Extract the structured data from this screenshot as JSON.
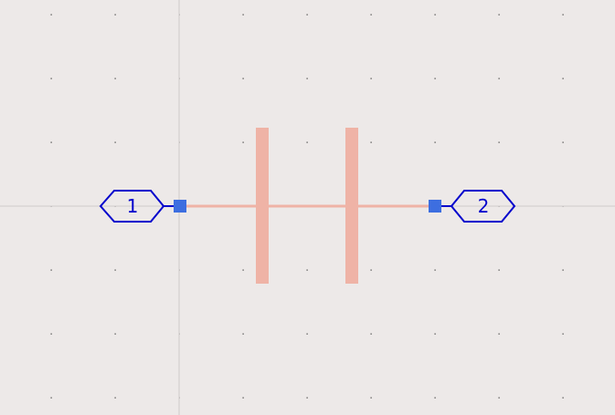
{
  "schematic": {
    "background_color": "#ede9e8",
    "grid_dot_color": "#3a3a3a",
    "axis_line_color": "#cfcaca",
    "component": {
      "type": "capacitor",
      "color": "#efb3a6"
    },
    "pins": {
      "color": "#3d6ee0"
    },
    "ports": [
      {
        "label": "1",
        "color": "#0000cc"
      },
      {
        "label": "2",
        "color": "#0000cc"
      }
    ]
  }
}
